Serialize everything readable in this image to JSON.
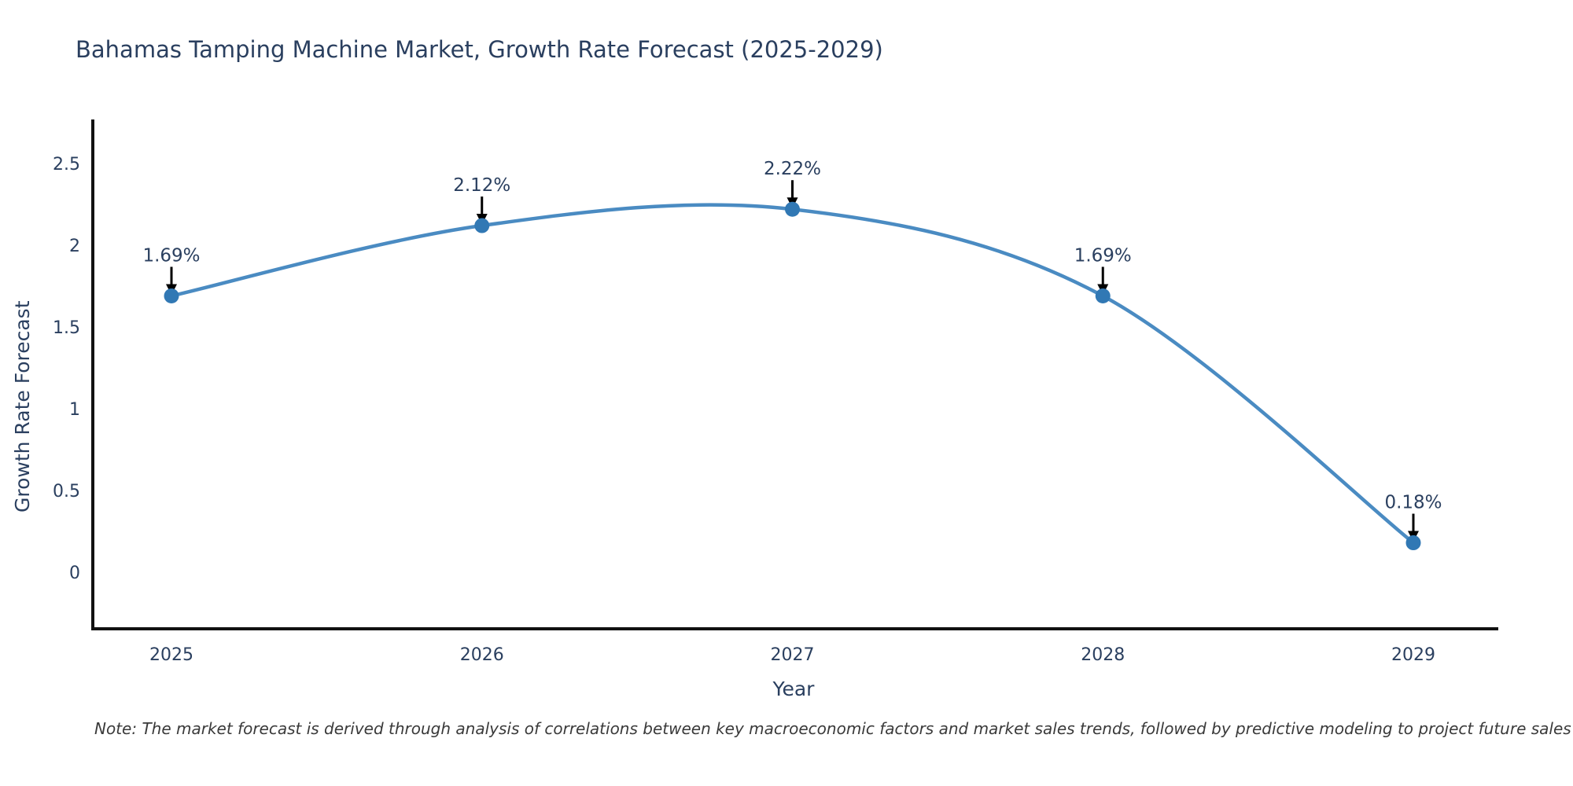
{
  "note": "Note: The market forecast is derived through analysis of correlations between key macroeconomic factors and market sales trends, followed by predictive modeling to project future sales",
  "chart_data": {
    "type": "line",
    "line_shape": "spline",
    "title": "Bahamas Tamping Machine Market, Growth Rate Forecast (2025-2029)",
    "xlabel": "Year",
    "ylabel": "Growth Rate Forecast",
    "categories": [
      "2025",
      "2026",
      "2027",
      "2028",
      "2029"
    ],
    "values": [
      1.69,
      2.12,
      2.22,
      1.69,
      0.18
    ],
    "point_labels": [
      "1.69%",
      "2.12%",
      "2.22%",
      "1.69%",
      "0.18%"
    ],
    "ytick_values": [
      0,
      0.5,
      1,
      1.5,
      2,
      2.5
    ],
    "ytick_labels": [
      "0",
      "0.5",
      "1",
      "1.5",
      "2",
      "2.5"
    ],
    "ylim": [
      -0.35,
      2.77
    ],
    "grid": false,
    "legend": "none",
    "annotation_style": "black-down-arrow",
    "colors": {
      "line": "#4a8bc2",
      "marker": "#3178b4",
      "axis": "#111111",
      "tick_text": "#2a3f5f",
      "annotation_text": "#2a3f5f",
      "arrow": "#000000",
      "note_text": "#3a3a3a",
      "background": "#ffffff"
    }
  }
}
